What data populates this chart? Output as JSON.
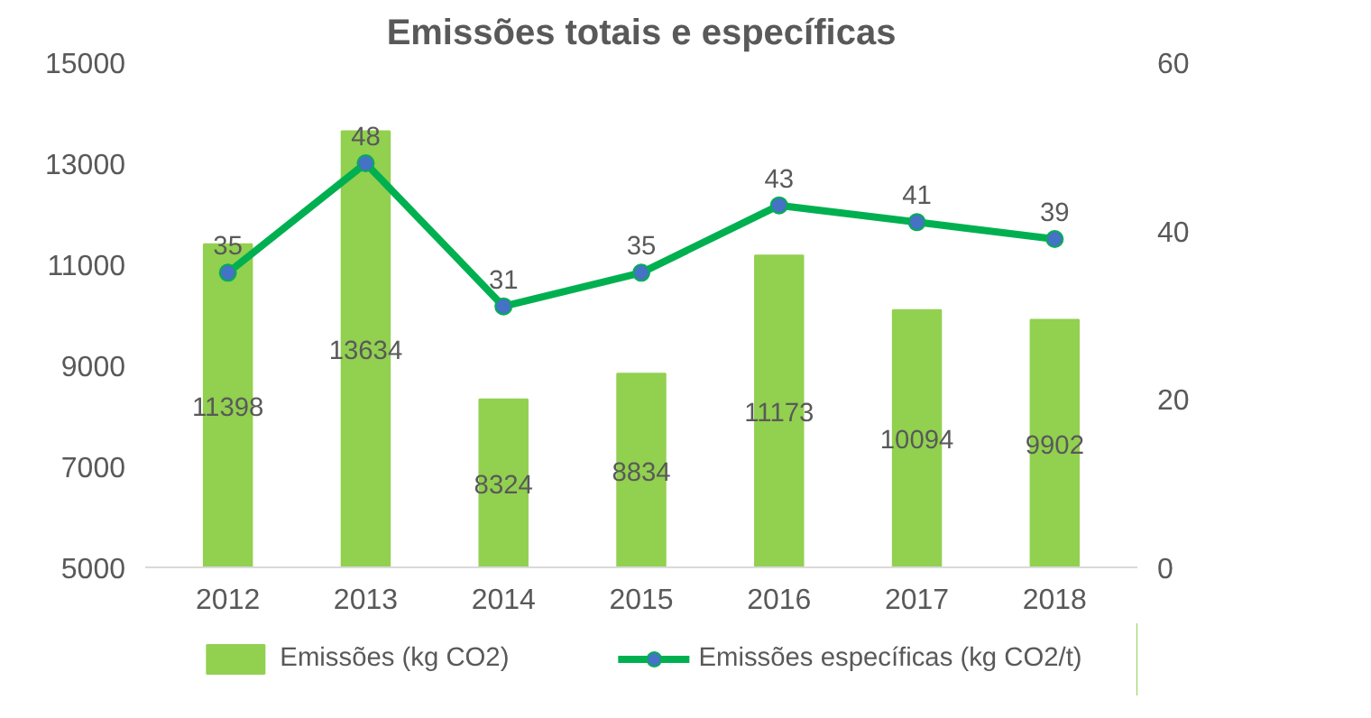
{
  "chart_data": {
    "type": "bar",
    "title": "Emissões totais e específicas",
    "categories": [
      "2012",
      "2013",
      "2014",
      "2015",
      "2016",
      "2017",
      "2018"
    ],
    "series": [
      {
        "name": "Emissões (kg CO2)",
        "color": "#92d050",
        "values": [
          11398,
          13634,
          8324,
          8834,
          11173,
          10094,
          9902
        ]
      },
      {
        "name": "Emissões específicas (kg CO2/t)",
        "type": "line",
        "axis": "y2",
        "color": "#00b050",
        "values": [
          35,
          48,
          31,
          35,
          43,
          41,
          39
        ]
      }
    ],
    "ylim": [
      5000,
      15000
    ],
    "yticks": [
      5000,
      7000,
      9000,
      11000,
      13000,
      15000
    ],
    "y2lim": [
      0,
      60
    ],
    "y2ticks": [
      0,
      20,
      40,
      60
    ],
    "data_labels": true,
    "grid": false,
    "legend": "bottom",
    "marker": "circle",
    "line_style": "solid"
  }
}
